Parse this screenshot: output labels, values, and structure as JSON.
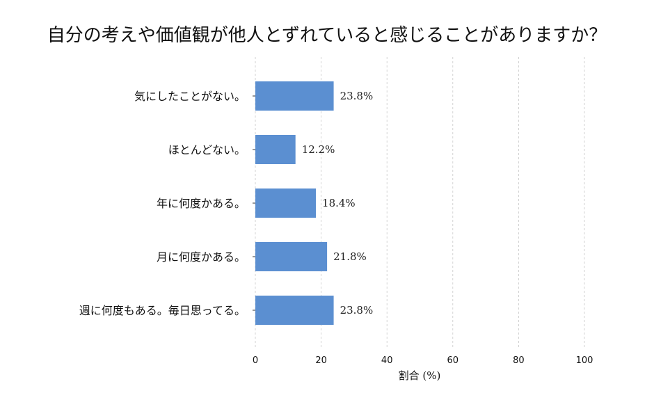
{
  "chart_data": {
    "type": "bar",
    "orientation": "horizontal",
    "title": "自分の考えや価値観が他人とずれていると感じることがありますか？",
    "categories": [
      "気にしたことがない。",
      "ほとんどない。",
      "年に何度かある。",
      "月に何度かある。",
      "週に何度もある。毎日思ってる。"
    ],
    "values": [
      23.8,
      12.2,
      18.4,
      21.8,
      23.8
    ],
    "value_labels": [
      "23.8%",
      "12.2%",
      "18.4%",
      "21.8%",
      "23.8%"
    ],
    "xlabel": "割合 (%)",
    "ylabel": "",
    "xlim": [
      0,
      100
    ],
    "xticks": [
      "0",
      "20",
      "40",
      "60",
      "80",
      "100"
    ],
    "grid": "vertical dashed",
    "bar_color": "#5b8fd1",
    "grid_color": "#c8c8c8"
  }
}
